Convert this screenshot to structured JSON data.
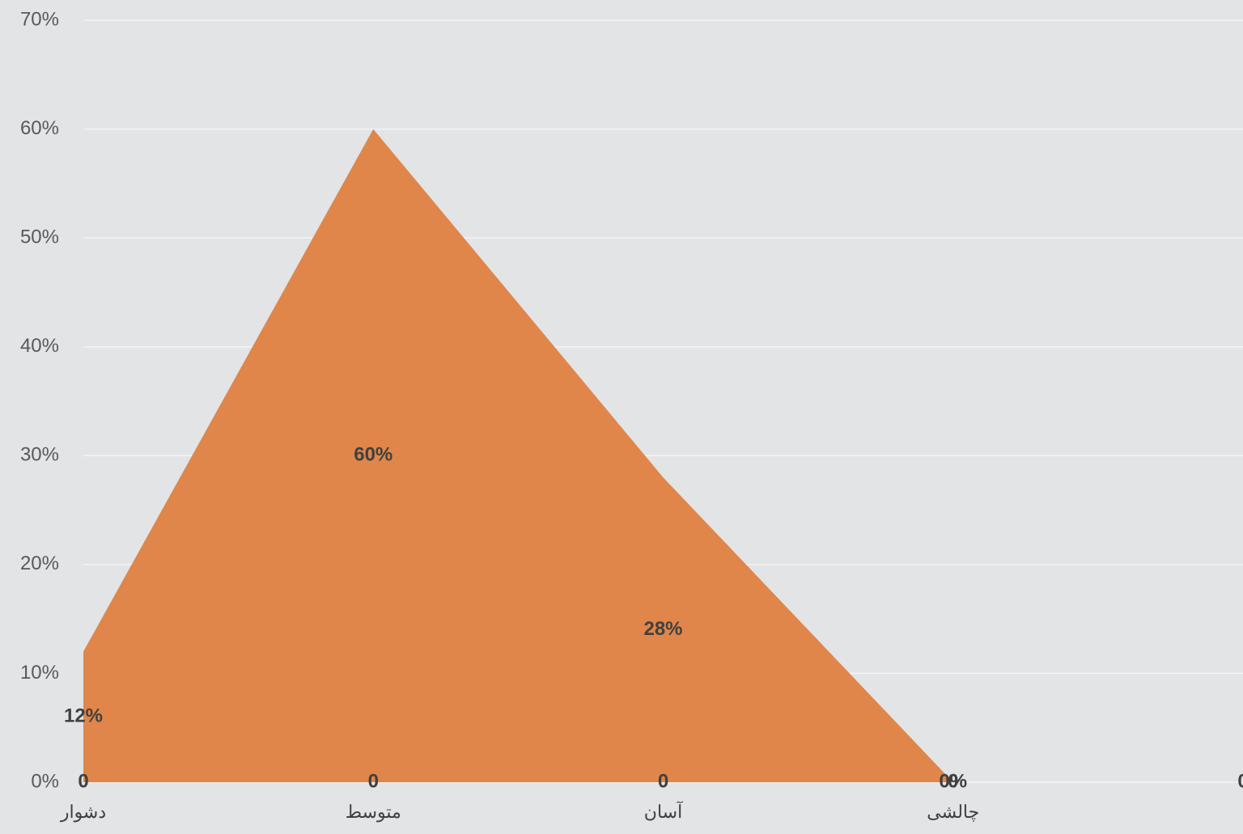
{
  "chart_data": {
    "type": "area",
    "categories": [
      "دشوار",
      "متوسط",
      "آسان",
      "چالشی",
      null
    ],
    "series": [
      {
        "color": "#e0864a",
        "values": [
          12,
          60,
          28,
          0,
          null
        ],
        "value_labels": [
          "12%",
          "60%",
          "28%",
          "0%",
          null
        ]
      },
      {
        "values": [
          0,
          0,
          0,
          0,
          0
        ]
      }
    ],
    "ylim": [
      0,
      70
    ],
    "yticks": [
      {
        "value": 0,
        "label": "0%"
      },
      {
        "value": 10,
        "label": "10%"
      },
      {
        "value": 20,
        "label": "20%"
      },
      {
        "value": 30,
        "label": "30%"
      },
      {
        "value": 40,
        "label": "40%"
      },
      {
        "value": 50,
        "label": "50%"
      },
      {
        "value": 60,
        "label": "60%"
      },
      {
        "value": 70,
        "label": "70%"
      }
    ],
    "grid": true
  }
}
